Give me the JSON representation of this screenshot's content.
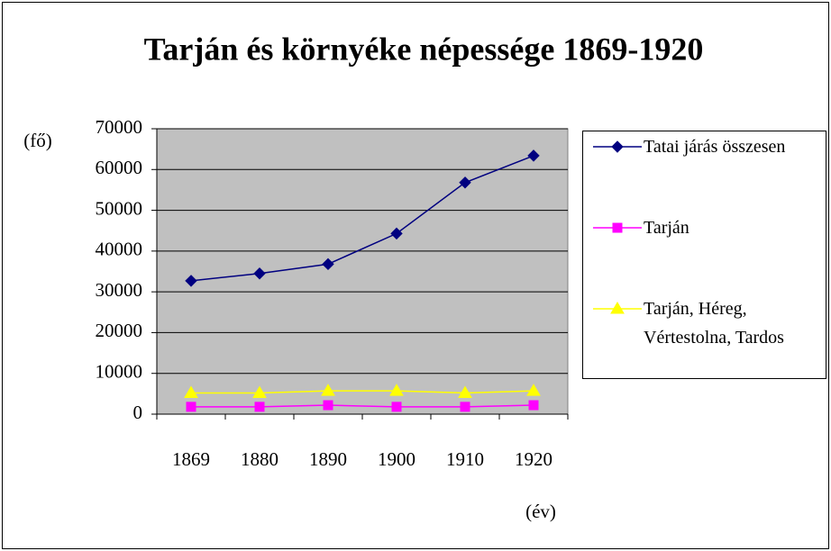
{
  "chart_data": {
    "type": "line",
    "title": "Tarján és környéke népessége 1869-1920",
    "y_label": "(fő)",
    "x_label": "(év)",
    "categories": [
      "1869",
      "1880",
      "1890",
      "1900",
      "1910",
      "1920"
    ],
    "series": [
      {
        "name": "Tatai járás összesen",
        "color": "#000080",
        "marker": "diamond",
        "values": [
          32700,
          34500,
          36800,
          44300,
          56800,
          63400
        ]
      },
      {
        "name": "Tarján",
        "color": "#ff00ff",
        "marker": "square",
        "values": [
          1800,
          1800,
          2200,
          1800,
          1800,
          2200
        ]
      },
      {
        "name": "Tarján, Héreg, Vértestolna, Tardos",
        "color": "#ffff00",
        "marker": "triangle",
        "values": [
          5200,
          5200,
          5700,
          5700,
          5200,
          5700
        ]
      }
    ],
    "ylim": [
      0,
      70000
    ],
    "yticks": [
      0,
      10000,
      20000,
      30000,
      40000,
      50000,
      60000,
      70000
    ],
    "grid": true,
    "plot_background": "#c0c0c0",
    "legend": "right"
  }
}
